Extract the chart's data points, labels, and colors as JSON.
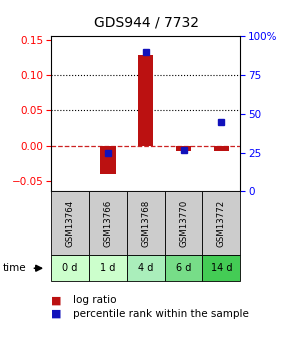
{
  "title": "GDS944 / 7732",
  "samples": [
    "GSM13764",
    "GSM13766",
    "GSM13768",
    "GSM13770",
    "GSM13772"
  ],
  "time_labels": [
    "0 d",
    "1 d",
    "4 d",
    "6 d",
    "14 d"
  ],
  "time_colors": [
    "#ccffcc",
    "#ccffcc",
    "#aaeebb",
    "#77dd88",
    "#44cc55"
  ],
  "log_ratios": [
    0.0,
    -0.04,
    0.128,
    -0.008,
    -0.008
  ],
  "percentile_ranks": [
    null,
    25.0,
    90.0,
    27.0,
    45.0
  ],
  "ylim_left": [
    -0.065,
    0.155
  ],
  "ylim_right": [
    0,
    100
  ],
  "yticks_left": [
    -0.05,
    0.0,
    0.05,
    0.1,
    0.15
  ],
  "yticks_right": [
    0,
    25,
    50,
    75,
    100
  ],
  "bar_color": "#bb1111",
  "point_color": "#1111bb",
  "zero_line_color": "#cc2222",
  "sample_box_color": "#cccccc",
  "title_fontsize": 10,
  "tick_fontsize": 7.5,
  "label_fontsize": 7,
  "legend_fontsize": 7.5
}
